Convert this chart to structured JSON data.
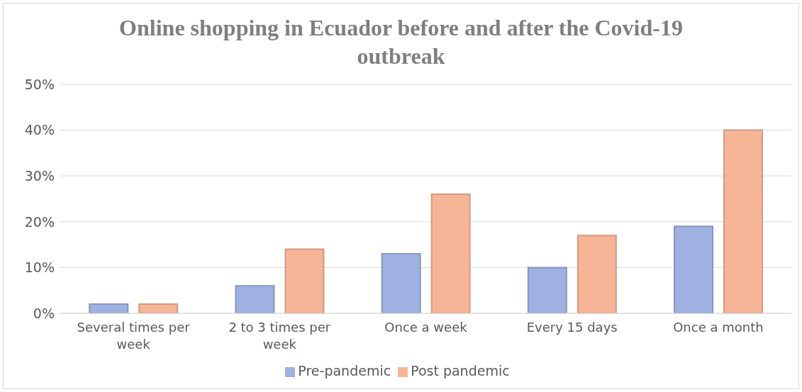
{
  "chart_data": {
    "type": "bar",
    "title": "Online shopping in Ecuador before and after the Covid-19 outbreak",
    "categories": [
      "Several times per week",
      "2 to 3 times per week",
      "Once a week",
      "Every 15 days",
      "Once a month"
    ],
    "series": [
      {
        "name": "Pre-pandemic",
        "color": "#9fb1e0",
        "values": [
          2,
          6,
          13,
          10,
          19
        ]
      },
      {
        "name": "Post pandemic",
        "color": "#f6b597",
        "values": [
          2,
          14,
          26,
          17,
          40
        ]
      }
    ],
    "ylim": [
      0,
      50
    ],
    "yticks": [
      {
        "value": 0,
        "label": "0%"
      },
      {
        "value": 10,
        "label": "10%"
      },
      {
        "value": 20,
        "label": "20%"
      },
      {
        "value": 30,
        "label": "30%"
      },
      {
        "value": 40,
        "label": "40%"
      },
      {
        "value": 50,
        "label": "50%"
      }
    ],
    "grid": "y",
    "legend": "bottom"
  }
}
